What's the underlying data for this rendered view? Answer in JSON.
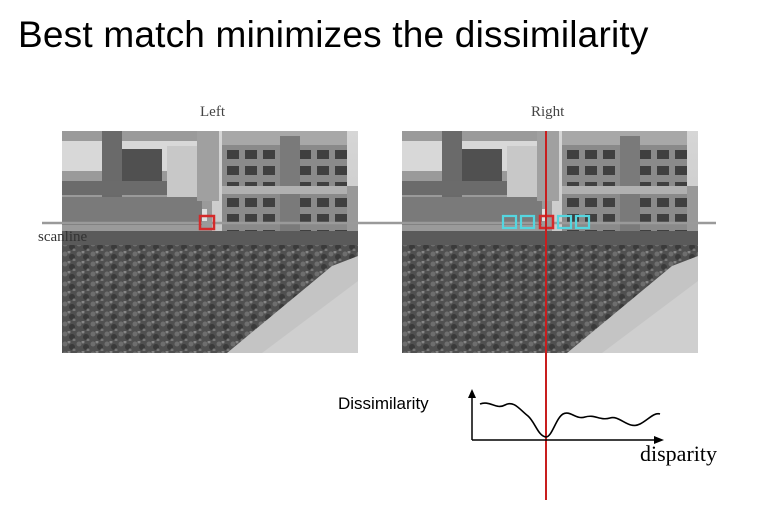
{
  "slide": {
    "title": "Best match minimizes the dissimilarity"
  },
  "images": {
    "left_caption": "Left",
    "right_caption": "Right",
    "scanline_label": "scanline"
  },
  "plot": {
    "y_label": "Dissimilarity",
    "x_label": "disparity"
  },
  "colors": {
    "scanline": "#9a9a9a",
    "best_match": "#d42a2a",
    "candidate_windows": "#55d6e0",
    "match_line": "#c81e1e"
  }
}
